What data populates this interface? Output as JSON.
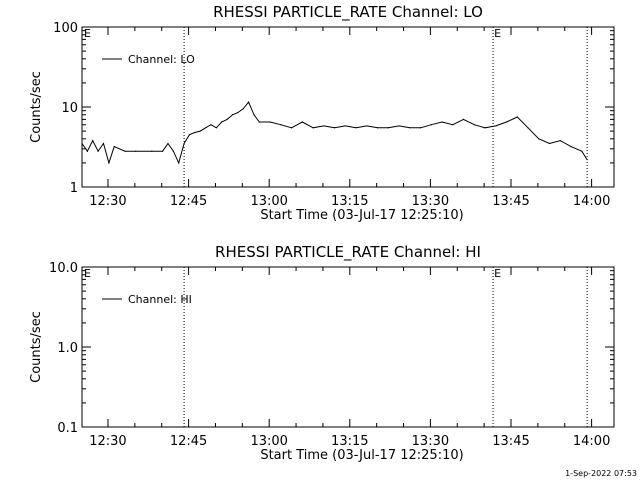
{
  "footer": {
    "timestamp": "1-Sep-2022 07:53"
  },
  "chart_data": [
    {
      "type": "line",
      "title": "RHESSI PARTICLE_RATE Channel: LO",
      "xlabel": "Start Time (03-Jul-17 12:25:10)",
      "ylabel": "Counts/sec",
      "y_scale": "log",
      "ylim": [
        1,
        100
      ],
      "xlim": [
        "12:25:10",
        "14:04:10"
      ],
      "x_ticks": [
        "12:30",
        "12:45",
        "13:00",
        "13:15",
        "13:30",
        "13:45",
        "14:00"
      ],
      "y_ticks": [
        "1",
        "10",
        "100"
      ],
      "legend": {
        "label": "Channel: LO",
        "position": "top-left"
      },
      "markers": [
        {
          "time": "12:44:10",
          "label": ""
        },
        {
          "time": "13:41:40",
          "label": "E"
        },
        {
          "time": "13:59:10",
          "label": ""
        }
      ],
      "corner_label": "E",
      "series": [
        {
          "name": "Channel: LO",
          "x": [
            "12:25:10",
            "12:26:10",
            "12:27:10",
            "12:28:10",
            "12:29:10",
            "12:30:10",
            "12:31:10",
            "12:33:10",
            "12:35:10",
            "12:38:10",
            "12:40:10",
            "12:41:10",
            "12:42:10",
            "12:43:10",
            "12:44:10",
            "12:45:10",
            "12:46:10",
            "12:47:10",
            "12:48:10",
            "12:49:10",
            "12:50:10",
            "12:51:10",
            "12:52:10",
            "12:53:10",
            "12:54:10",
            "12:55:10",
            "12:56:10",
            "12:57:10",
            "12:58:10",
            "13:00:10",
            "13:02:10",
            "13:04:10",
            "13:06:10",
            "13:08:10",
            "13:10:10",
            "13:12:10",
            "13:14:10",
            "13:16:10",
            "13:18:10",
            "13:20:10",
            "13:22:10",
            "13:24:10",
            "13:26:10",
            "13:28:10",
            "13:30:10",
            "13:32:10",
            "13:34:10",
            "13:36:10",
            "13:38:10",
            "13:40:10",
            "13:42:10",
            "13:44:10",
            "13:46:10",
            "13:48:10",
            "13:50:10",
            "13:52:10",
            "13:54:10",
            "13:56:10",
            "13:58:10",
            "13:59:10"
          ],
          "values": [
            3.5,
            2.8,
            3.8,
            2.8,
            3.5,
            2.0,
            3.2,
            2.8,
            2.8,
            2.8,
            2.8,
            3.5,
            2.8,
            2.0,
            3.5,
            4.5,
            4.8,
            5.0,
            5.5,
            6.0,
            5.5,
            6.5,
            7.0,
            8.0,
            8.5,
            9.5,
            11.5,
            8.0,
            6.5,
            6.5,
            6.0,
            5.5,
            6.5,
            5.5,
            5.8,
            5.5,
            5.8,
            5.5,
            5.8,
            5.5,
            5.5,
            5.8,
            5.5,
            5.5,
            6.0,
            6.5,
            6.0,
            7.0,
            6.0,
            5.5,
            5.8,
            6.5,
            7.5,
            5.5,
            4.0,
            3.5,
            3.8,
            3.2,
            2.8,
            2.2
          ]
        }
      ]
    },
    {
      "type": "line",
      "title": "RHESSI PARTICLE_RATE Channel: HI",
      "xlabel": "Start Time (03-Jul-17 12:25:10)",
      "ylabel": "Counts/sec",
      "y_scale": "log",
      "ylim": [
        0.1,
        10
      ],
      "xlim": [
        "12:25:10",
        "14:04:10"
      ],
      "x_ticks": [
        "12:30",
        "12:45",
        "13:00",
        "13:15",
        "13:30",
        "13:45",
        "14:00"
      ],
      "y_ticks": [
        "0.1",
        "1.0",
        "10.0"
      ],
      "legend": {
        "label": "Channel: HI",
        "position": "top-left"
      },
      "markers": [
        {
          "time": "12:44:10",
          "label": ""
        },
        {
          "time": "13:41:40",
          "label": "E"
        },
        {
          "time": "13:59:10",
          "label": ""
        }
      ],
      "corner_label": "E",
      "series": [
        {
          "name": "Channel: HI",
          "x": [],
          "values": []
        }
      ]
    }
  ]
}
